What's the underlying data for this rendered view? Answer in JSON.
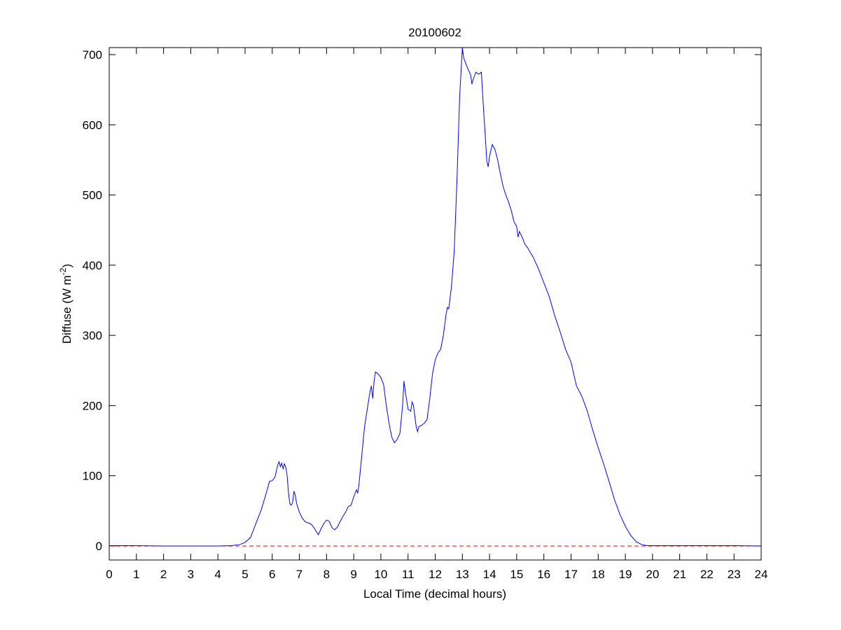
{
  "chart_data": {
    "type": "line",
    "title": "20100602",
    "xlabel": "Local Time (decimal hours)",
    "ylabel": {
      "text": "Diffuse (W m",
      "superscript": "-2",
      "suffix": ")"
    },
    "x": [
      0,
      1,
      2,
      3,
      4,
      4.5,
      4.6,
      4.8,
      5.0,
      5.2,
      5.3,
      5.4,
      5.5,
      5.6,
      5.7,
      5.8,
      5.9,
      6.0,
      6.1,
      6.2,
      6.25,
      6.3,
      6.35,
      6.4,
      6.45,
      6.5,
      6.55,
      6.6,
      6.65,
      6.7,
      6.75,
      6.8,
      6.85,
      6.9,
      7.0,
      7.1,
      7.2,
      7.3,
      7.4,
      7.5,
      7.6,
      7.7,
      7.8,
      7.9,
      8.0,
      8.1,
      8.2,
      8.3,
      8.4,
      8.5,
      8.6,
      8.7,
      8.8,
      8.9,
      9.0,
      9.1,
      9.15,
      9.2,
      9.3,
      9.4,
      9.5,
      9.6,
      9.65,
      9.7,
      9.75,
      9.8,
      9.9,
      10.0,
      10.1,
      10.2,
      10.3,
      10.4,
      10.5,
      10.6,
      10.7,
      10.8,
      10.85,
      10.9,
      11.0,
      11.1,
      11.15,
      11.2,
      11.3,
      11.35,
      11.4,
      11.5,
      11.6,
      11.7,
      11.8,
      11.9,
      12.0,
      12.1,
      12.2,
      12.3,
      12.4,
      12.45,
      12.5,
      12.6,
      12.7,
      12.8,
      12.9,
      13.0,
      13.05,
      13.1,
      13.2,
      13.3,
      13.35,
      13.4,
      13.5,
      13.6,
      13.7,
      13.75,
      13.8,
      13.85,
      13.9,
      13.95,
      14.0,
      14.1,
      14.2,
      14.3,
      14.4,
      14.5,
      14.6,
      14.7,
      14.8,
      14.9,
      15.0,
      15.05,
      15.1,
      15.2,
      15.3,
      15.4,
      15.5,
      15.6,
      15.8,
      16.0,
      16.2,
      16.4,
      16.6,
      16.8,
      17.0,
      17.2,
      17.4,
      17.6,
      17.8,
      18.0,
      18.2,
      18.4,
      18.6,
      18.8,
      19.0,
      19.2,
      19.4,
      19.6,
      19.8,
      20.0,
      21,
      22,
      23,
      24
    ],
    "series": [
      {
        "color": "#0000ff",
        "values": [
          0.5,
          0.5,
          0,
          0,
          0,
          0.5,
          1,
          2,
          5,
          12,
          22,
          32,
          42,
          52,
          65,
          78,
          92,
          93,
          98,
          115,
          120,
          113,
          118,
          110,
          117,
          112,
          100,
          75,
          60,
          58,
          62,
          78,
          72,
          60,
          48,
          40,
          35,
          33,
          32,
          28,
          22,
          16,
          25,
          32,
          37,
          35,
          26,
          23,
          27,
          35,
          42,
          48,
          56,
          58,
          70,
          80,
          75,
          90,
          130,
          170,
          195,
          220,
          228,
          210,
          235,
          248,
          245,
          240,
          230,
          200,
          175,
          155,
          147,
          152,
          160,
          200,
          235,
          220,
          195,
          192,
          205,
          200,
          170,
          163,
          170,
          172,
          175,
          180,
          210,
          245,
          265,
          275,
          280,
          300,
          330,
          340,
          338,
          370,
          420,
          520,
          640,
          710,
          695,
          690,
          680,
          672,
          658,
          665,
          675,
          672,
          675,
          640,
          610,
          580,
          548,
          540,
          555,
          572,
          565,
          550,
          530,
          512,
          500,
          490,
          478,
          462,
          455,
          440,
          448,
          440,
          430,
          425,
          418,
          412,
          395,
          375,
          355,
          328,
          305,
          280,
          262,
          228,
          213,
          192,
          165,
          140,
          117,
          92,
          66,
          45,
          28,
          15,
          6,
          2,
          0.5,
          0.5,
          0.5,
          0.5,
          0.5,
          0
        ]
      }
    ],
    "reference_line": {
      "value": 0,
      "color": "#ff0000",
      "dashed": true
    },
    "xlim": [
      0,
      24
    ],
    "xticks": [
      0,
      1,
      2,
      3,
      4,
      5,
      6,
      7,
      8,
      9,
      10,
      11,
      12,
      13,
      14,
      15,
      16,
      17,
      18,
      19,
      20,
      21,
      22,
      23,
      24
    ],
    "ylim": [
      -20,
      710
    ],
    "yticks": [
      0,
      100,
      200,
      300,
      400,
      500,
      600,
      700
    ]
  }
}
